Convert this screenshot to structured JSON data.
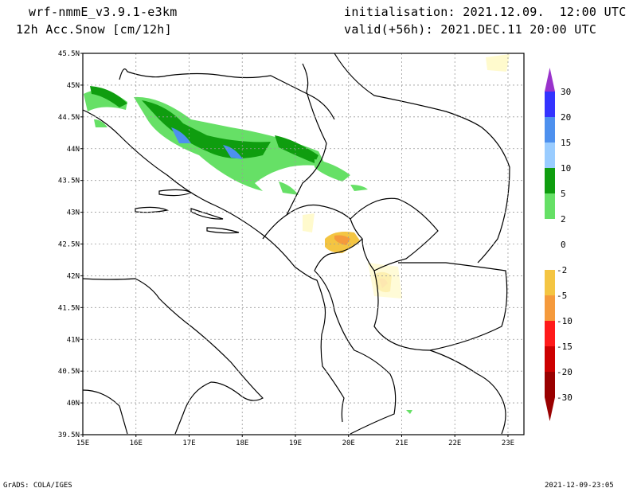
{
  "header": {
    "model": "wrf-nmmE_v3.9.1-e3km",
    "field": "12h Acc.Snow [cm/12h]",
    "init": "initialisation: 2021.12.09.  12:00 UTC",
    "valid": "valid(+56h): 2021.DEC.11 20:00 UTC"
  },
  "footer": {
    "credit": "GrADS: COLA/IGES",
    "timestamp": "2021-12-09-23:05"
  },
  "map": {
    "lon_labels": [
      "15E",
      "16E",
      "17E",
      "18E",
      "19E",
      "20E",
      "21E",
      "22E",
      "23E"
    ],
    "lat_labels": [
      "39.5N",
      "40N",
      "40.5N",
      "41N",
      "41.5N",
      "42N",
      "42.5N",
      "43N",
      "43.5N",
      "44N",
      "44.5N",
      "45N",
      "45.5N"
    ],
    "lon_range": [
      15,
      23.3
    ],
    "lat_range": [
      39.5,
      45.5
    ]
  },
  "colorbar": {
    "labels": [
      "30",
      "20",
      "15",
      "10",
      "5",
      "2",
      "0",
      "-2",
      "-5",
      "-10",
      "-15",
      "-20",
      "-30"
    ],
    "colors": [
      "#9932cc",
      "#3333ff",
      "#4d90ee",
      "#99ccff",
      "#0f9d0f",
      "#66e066",
      "#ffffff",
      "#fffacd",
      "#f4c542",
      "#f59a3c",
      "#ff1a1a",
      "#cc0000",
      "#990000"
    ]
  }
}
